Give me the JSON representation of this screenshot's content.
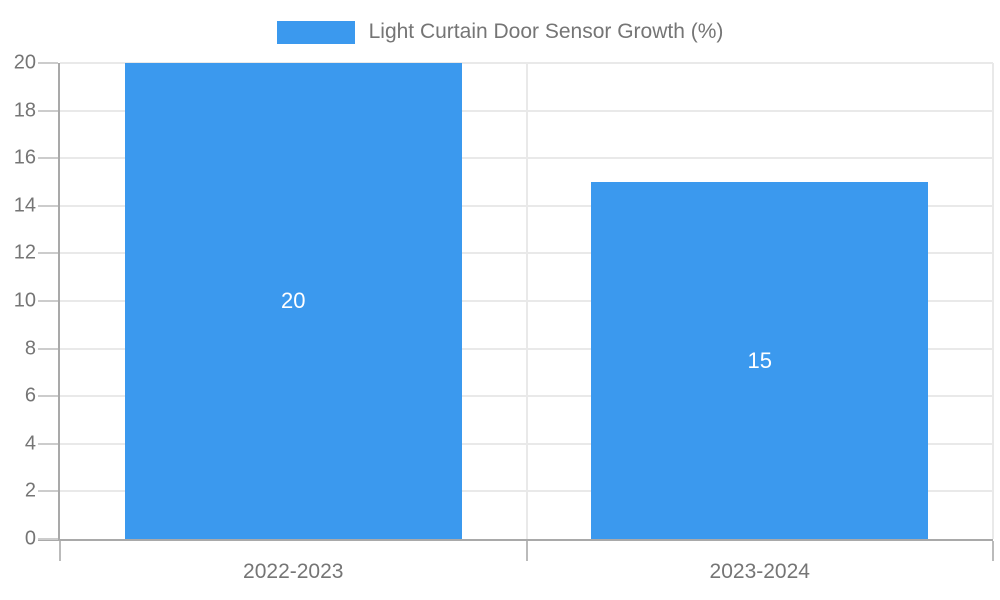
{
  "chart_data": {
    "type": "bar",
    "categories": [
      "2022-2023",
      "2023-2024"
    ],
    "series": [
      {
        "name": "Light Curtain Door Sensor Growth (%)",
        "values": [
          20,
          15
        ]
      }
    ],
    "title": "",
    "xlabel": "",
    "ylabel": "",
    "ylim": [
      0,
      20
    ],
    "yticks": [
      0,
      2,
      4,
      6,
      8,
      10,
      12,
      14,
      16,
      18,
      20
    ],
    "grid": true,
    "legend_position": "top-center",
    "bar_value_labels_shown": true,
    "colors": {
      "bar": "#3B99EE",
      "bar_label_text": "#FFFFFF",
      "axis_line": "#A9A9A9",
      "grid_line": "#E9E9E9",
      "tick_mark_y": "#CCCCCC",
      "tick_mark_x": "#BBBBBB",
      "axis_text": "#757575",
      "legend_text": "#757575",
      "background": "#FFFFFF"
    }
  }
}
